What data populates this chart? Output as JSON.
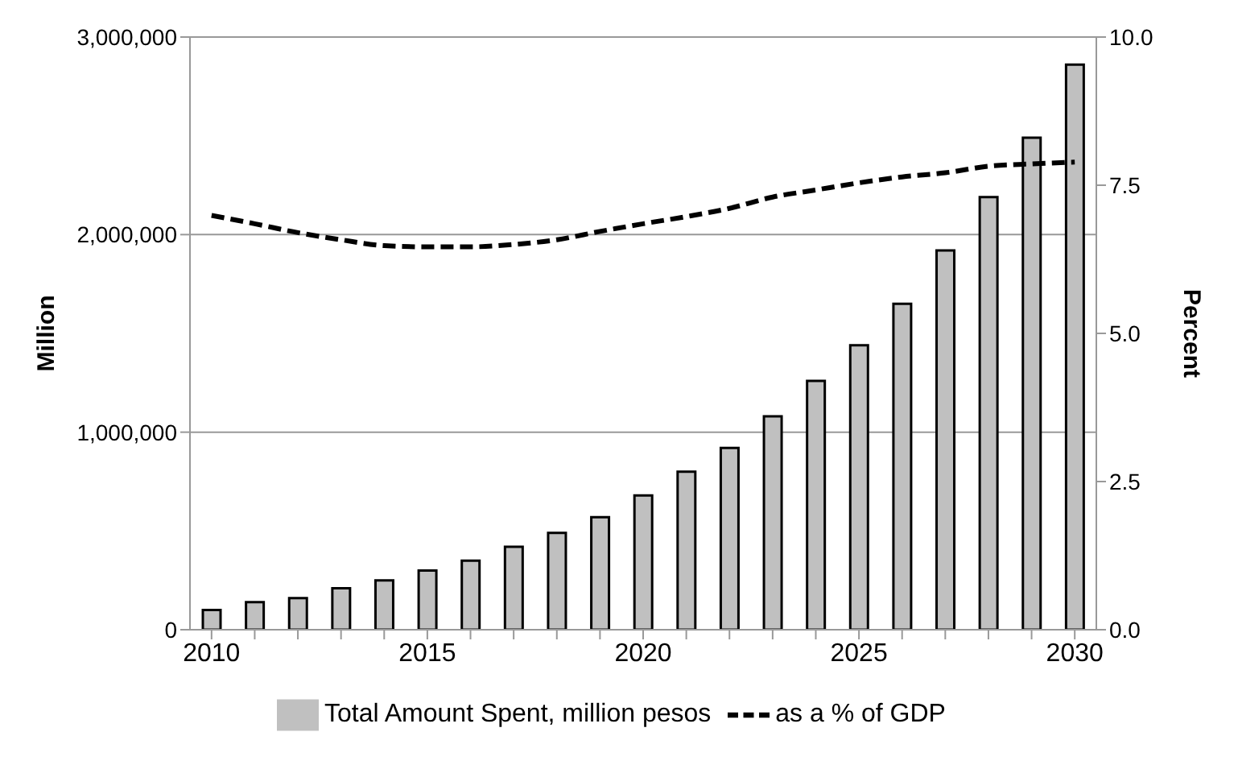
{
  "chart_data": {
    "type": "bar",
    "ylabel": "Million",
    "y2label": "Percent",
    "categories": [
      "2010",
      null,
      null,
      null,
      null,
      "2015",
      null,
      null,
      null,
      null,
      "2020",
      null,
      null,
      null,
      null,
      "2025",
      null,
      null,
      null,
      null,
      "2030"
    ],
    "series": [
      {
        "name": "Total Amount Spent, million pesos",
        "color": "#c0c0c0",
        "values": [
          100000,
          140000,
          160000,
          210000,
          250000,
          300000,
          350000,
          420000,
          490000,
          570000,
          680000,
          800000,
          920000,
          1080000,
          1260000,
          1440000,
          1650000,
          1920000,
          2190000,
          2490000,
          2860000
        ]
      },
      {
        "name": "as a % of GDP",
        "type": "line",
        "axis": "y2",
        "color": "#000000",
        "line_style": "dashed",
        "marker": "none",
        "values": [
          6.99,
          6.85,
          6.7,
          6.58,
          6.48,
          6.46,
          6.46,
          6.5,
          6.58,
          6.72,
          6.85,
          6.97,
          7.11,
          7.3,
          7.42,
          7.54,
          7.64,
          7.71,
          7.82,
          7.86,
          7.89
        ]
      }
    ],
    "ylim": [
      0,
      3000000
    ],
    "yticks": [
      {
        "value": 0,
        "label": "0"
      },
      {
        "value": 1000000,
        "label": "1,000,000"
      },
      {
        "value": 2000000,
        "label": "2,000,000"
      },
      {
        "value": 3000000,
        "label": "3,000,000"
      }
    ],
    "y2lim": [
      0,
      10
    ],
    "y2ticks": [
      {
        "value": 0,
        "label": "0.0"
      },
      {
        "value": 2.5,
        "label": "2.5"
      },
      {
        "value": 5,
        "label": "5.0"
      },
      {
        "value": 7.5,
        "label": "7.5"
      },
      {
        "value": 10,
        "label": "10.0"
      }
    ],
    "grid": "y",
    "legend": "bottom"
  }
}
